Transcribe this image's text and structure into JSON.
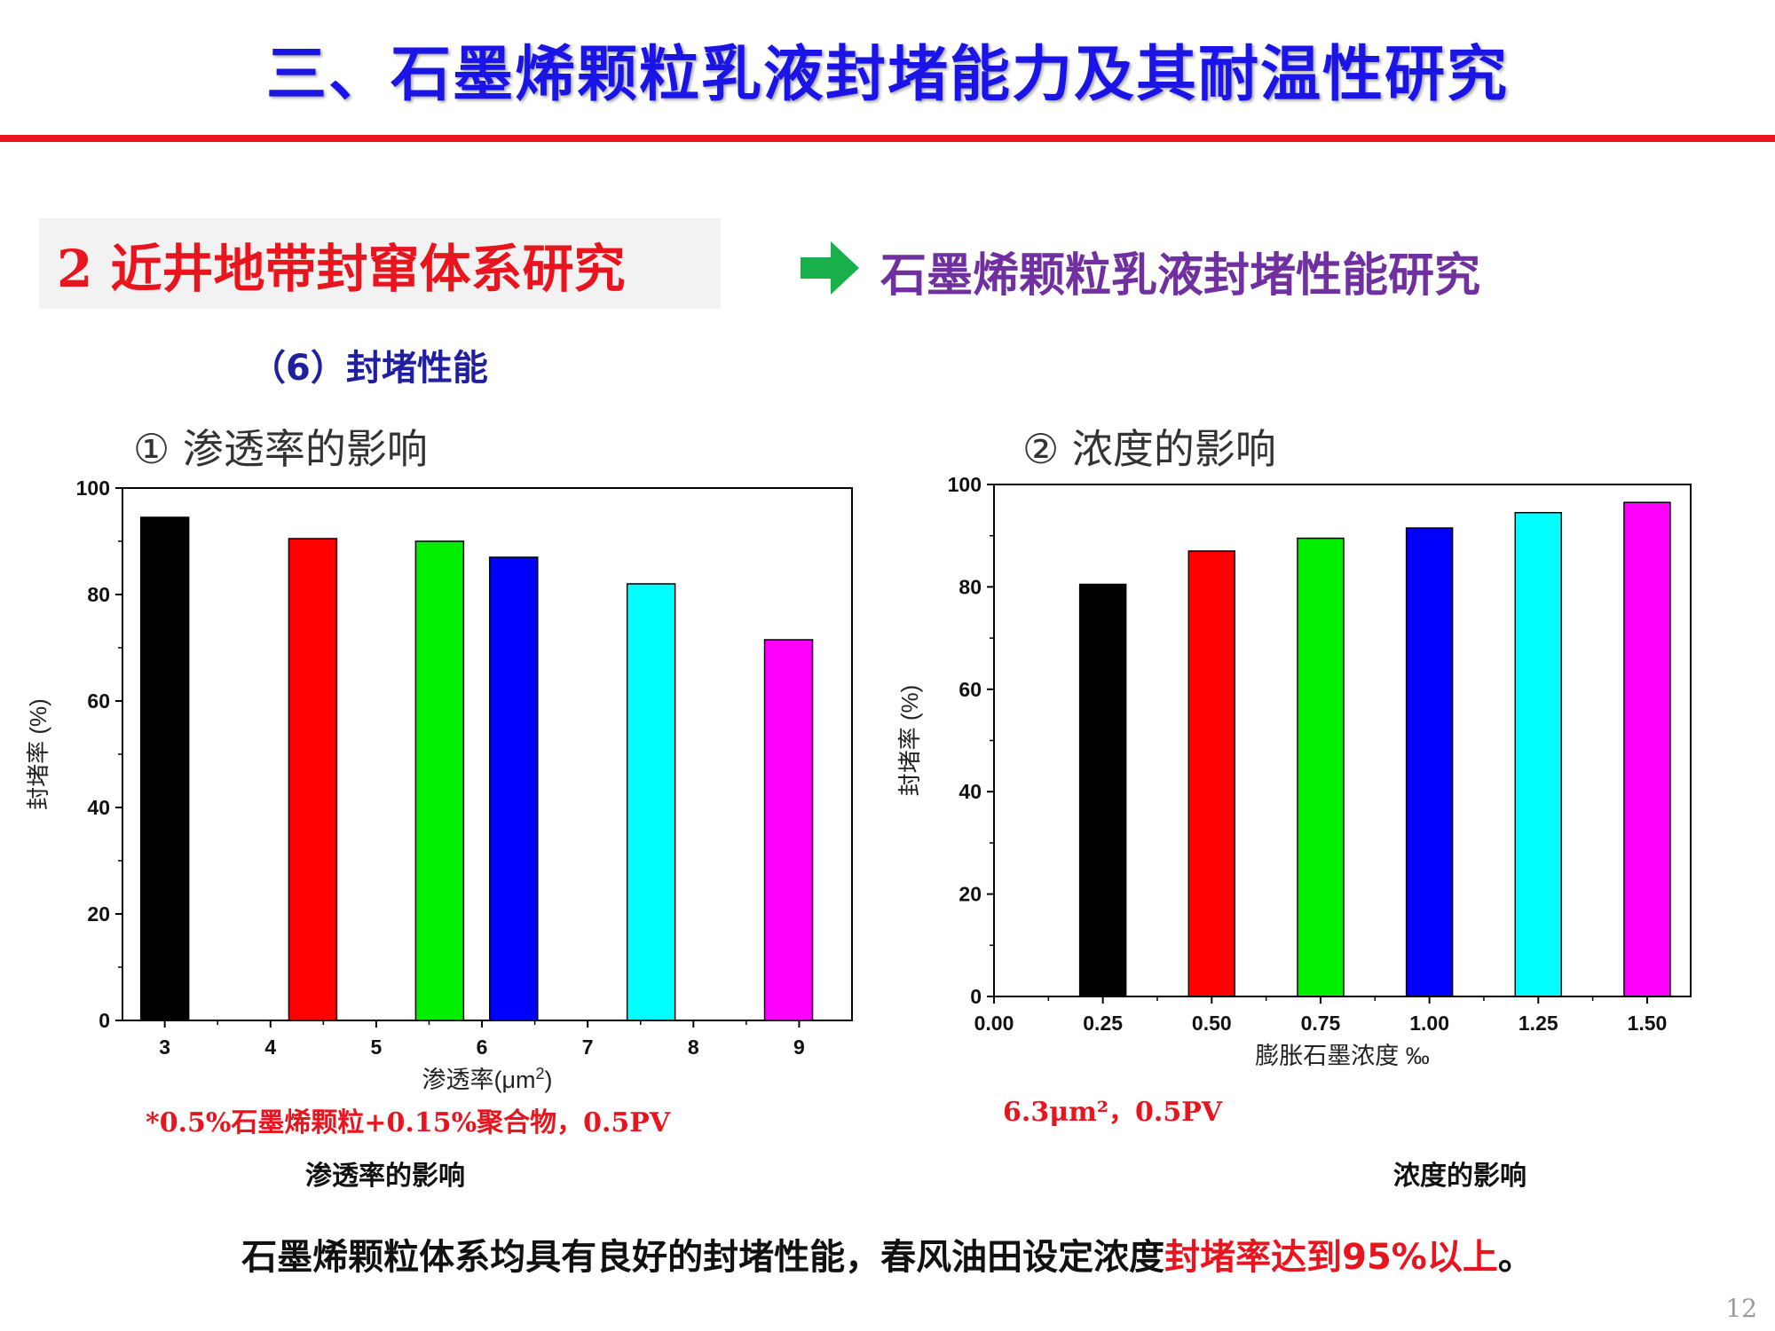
{
  "header": {
    "title": "三、石墨烯颗粒乳液封堵能力及其耐温性研究"
  },
  "section": {
    "title": "2 近井地带封窜体系研究",
    "subtitle": "石墨烯颗粒乳液封堵性能研究",
    "sub_heading": "（6）封堵性能"
  },
  "colors": {
    "title": "#1a14e6",
    "accent": "#e8141e",
    "purple": "#7030a0",
    "arrow": "#18b04a"
  },
  "panels": [
    {
      "heading": "①  渗透率的影响",
      "note": "*0.5%石墨烯颗粒+0.15%聚合物，0.5PV",
      "caption": "渗透率的影响"
    },
    {
      "heading": "②  浓度的影响",
      "note": "6.3μm²，0.5PV",
      "caption": "浓度的影响"
    }
  ],
  "chart_data": [
    {
      "type": "bar",
      "x": [
        3,
        4.4,
        5.6,
        6.3,
        7.6,
        8.9
      ],
      "values": [
        94.5,
        90.5,
        90,
        87,
        82,
        71.5
      ],
      "bar_colors": [
        "#000000",
        "#ff0000",
        "#00ee00",
        "#0000ff",
        "#00ffff",
        "#ff00ff"
      ],
      "xlabel": "渗透率(μm",
      "xlabel_sup": "2",
      "xlabel_end": ")",
      "ylabel": "封堵率 (%)",
      "xlim": [
        2.6,
        9.5
      ],
      "ylim": [
        0,
        100
      ],
      "xticks": [
        3,
        4,
        5,
        6,
        7,
        8,
        9
      ],
      "yticks": [
        0,
        20,
        40,
        60,
        80,
        100
      ],
      "grid": false
    },
    {
      "type": "bar",
      "x": [
        0.25,
        0.5,
        0.75,
        1.0,
        1.25,
        1.5
      ],
      "values": [
        80.5,
        87,
        89.5,
        91.5,
        94.5,
        96.5
      ],
      "bar_colors": [
        "#000000",
        "#ff0000",
        "#00ee00",
        "#0000ff",
        "#00ffff",
        "#ff00ff"
      ],
      "xlabel": "膨胀石墨浓度  ‰",
      "ylabel": "封堵率 (%)",
      "xlim": [
        0,
        1.6
      ],
      "ylim": [
        0,
        100
      ],
      "xticks": [
        "0.00",
        "0.25",
        "0.50",
        "0.75",
        "1.00",
        "1.25",
        "1.50"
      ],
      "yticks": [
        0,
        20,
        40,
        60,
        80,
        100
      ],
      "grid": false
    }
  ],
  "conclusion": {
    "text": "石墨烯颗粒体系均具有良好的封堵性能，春风油田设定浓度",
    "highlight": "封堵率达到95%以上",
    "end": "。"
  },
  "page_number": "12"
}
